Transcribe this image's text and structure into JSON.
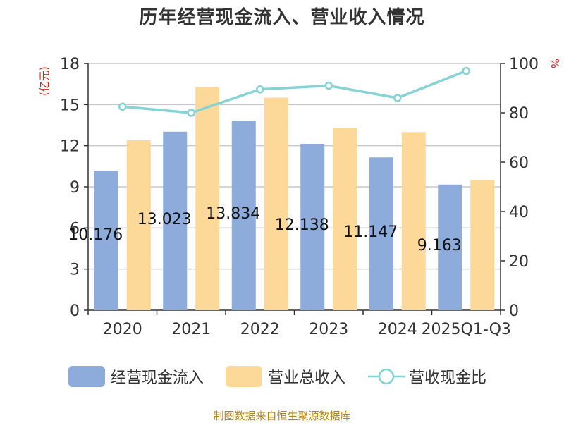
{
  "title": "历年经营现金流入、营业收入情况",
  "source": "制图数据来自恒生聚源数据库",
  "colors": {
    "cash_inflow": "#8eacdb",
    "revenue": "#fdd999",
    "ratio": "#86d3d6"
  },
  "chart_data": {
    "type": "bar",
    "categories": [
      "2020",
      "2021",
      "2022",
      "2023",
      "2024",
      "2025Q1-Q3"
    ],
    "series": [
      {
        "name": "经营现金流入",
        "axis": "left",
        "values": [
          10.176,
          13.023,
          13.834,
          12.138,
          11.147,
          9.163
        ],
        "labels": [
          "10.176",
          "13.023",
          "13.834",
          "12.138",
          "11.147",
          "9.163"
        ]
      },
      {
        "name": "营业总收入",
        "axis": "left",
        "values": [
          12.4,
          16.3,
          15.5,
          13.3,
          13.0,
          9.5
        ]
      },
      {
        "name": "营收现金比",
        "type": "line",
        "axis": "right",
        "values": [
          82.5,
          80.0,
          89.5,
          91.0,
          86.0,
          97.0
        ]
      }
    ],
    "y_left": {
      "label": "(亿元)",
      "min": 0,
      "max": 18,
      "ticks": [
        0,
        3,
        6,
        9,
        12,
        15,
        18
      ]
    },
    "y_right": {
      "label": "%",
      "min": 0,
      "max": 100,
      "ticks": [
        0,
        20,
        40,
        60,
        80,
        100
      ]
    },
    "grid": true,
    "legend_position": "bottom"
  }
}
